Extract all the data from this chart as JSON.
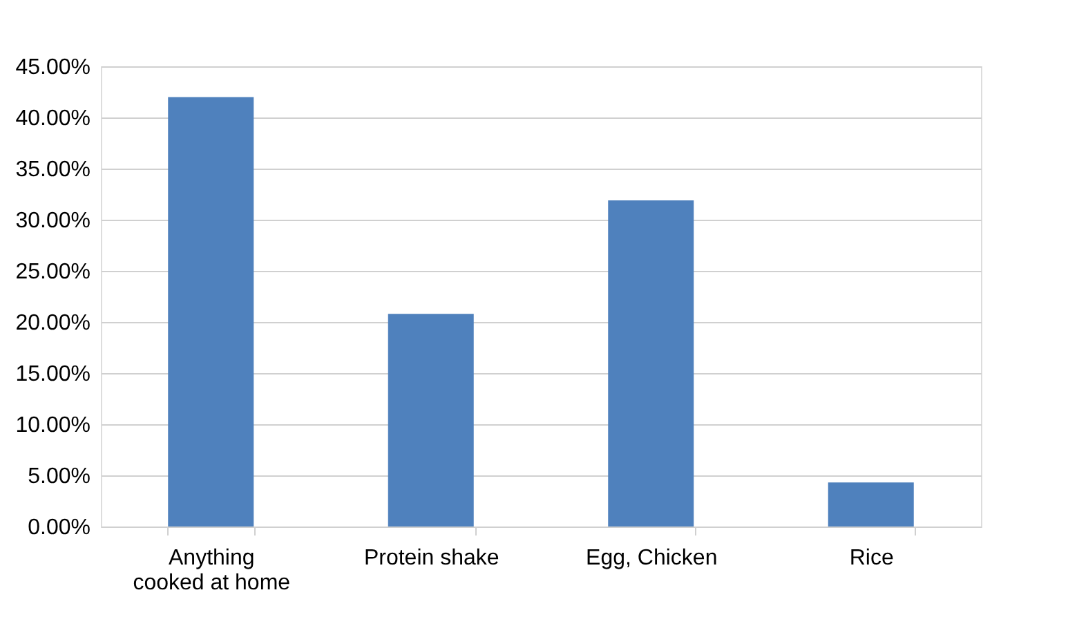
{
  "chart_data": {
    "type": "bar",
    "categories": [
      "Anything cooked at home",
      "Protein shake",
      "Egg, Chicken",
      "Rice"
    ],
    "values": [
      42.0,
      20.8,
      31.9,
      4.3
    ],
    "color": "#4f81bd",
    "ylim": [
      0,
      45
    ],
    "yticks": [
      {
        "value": 0,
        "label": "0.00%"
      },
      {
        "value": 5,
        "label": "5.00%"
      },
      {
        "value": 10,
        "label": "10.00%"
      },
      {
        "value": 15,
        "label": "15.00%"
      },
      {
        "value": 20,
        "label": "20.00%"
      },
      {
        "value": 25,
        "label": "25.00%"
      },
      {
        "value": 30,
        "label": "30.00%"
      },
      {
        "value": 35,
        "label": "35.00%"
      },
      {
        "value": 40,
        "label": "40.00%"
      },
      {
        "value": 45,
        "label": "45.00%"
      }
    ],
    "grid": "y"
  }
}
